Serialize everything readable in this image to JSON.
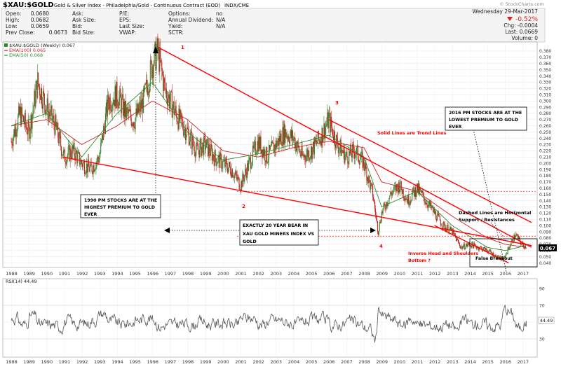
{
  "header": {
    "symbol": "$XAU:$GOLD",
    "description": "Gold & Silver Index - Philadelphia/Gold - Continuous Contract (EOD)",
    "exchange": "INDX/CME",
    "watermark": "© StockCharts.com",
    "date": "Wednesday 29-Mar-2017",
    "change_pct": "-0.52%",
    "change": "Chg: -0.0004",
    "last": "Last: 0.0669",
    "volume": "Volume: 0",
    "stats": [
      [
        {
          "k": "Open:",
          "v": "0.0680"
        },
        {
          "k": "Ask:",
          "v": ""
        },
        {
          "k": "P/E:",
          "v": ""
        },
        {
          "k": "Options:",
          "v": "no"
        }
      ],
      [
        {
          "k": "High:",
          "v": "0.0682"
        },
        {
          "k": "Ask Size:",
          "v": ""
        },
        {
          "k": "EPS:",
          "v": ""
        },
        {
          "k": "Annual Dividend:",
          "v": "N/A"
        }
      ],
      [
        {
          "k": "Low:",
          "v": "0.0659"
        },
        {
          "k": "Bid:",
          "v": ""
        },
        {
          "k": "Last Size:",
          "v": ""
        },
        {
          "k": "Yield:",
          "v": "N/A"
        }
      ],
      [
        {
          "k": "Prev Close:",
          "v": "0.0673"
        },
        {
          "k": "Bid Size:",
          "v": ""
        },
        {
          "k": "VWAP:",
          "v": ""
        },
        {
          "k": "SCTR:",
          "v": ""
        }
      ]
    ]
  },
  "legend": {
    "price": "$XAU:$GOLD (Weekly) 0.067",
    "ema100": "EMA(100) 0.065",
    "ema50": "EMA(50) 0.068"
  },
  "rsi_label": "RSI(14) 44.49",
  "rsi_last": "44.49",
  "current_price": "0.067",
  "colors": {
    "up": "#2e8b2e",
    "down": "#cc2222",
    "ema100": "#cc2222",
    "ema50": "#2e8b2e",
    "trend": "#ff0000",
    "rsi": "#555555"
  },
  "annotations": {
    "n1": "1",
    "n2": "2",
    "n3": "3",
    "n4": "4",
    "box1990": [
      "1990 PM STOCKS ARE AT THE",
      "HIGHEST PREMIUM TO GOLD",
      "EVER"
    ],
    "box2016": [
      "2016 PM STOCKS ARE AT THE",
      "LOWEST PREMIUM TO GOLD",
      "EVER"
    ],
    "bear": [
      "EXACTLY 20 YEAR BEAR IN",
      "XAU GOLD MINERS INDEX VS",
      "GOLD"
    ],
    "solid": "Solid Lines are Trend Lines",
    "dashed": [
      "Dashed  Lines are Horizontal",
      "Support / Resistances"
    ],
    "ihs": [
      "Inverse Head and Shoulders",
      "Bottom ?"
    ],
    "false_breakout": "False Breakout"
  },
  "chart_data": {
    "type": "candlestick",
    "title": "$XAU:$GOLD (Weekly)",
    "x_years": [
      "1988",
      "1989",
      "1990",
      "1991",
      "1992",
      "1993",
      "1994",
      "1995",
      "1996",
      "1997",
      "1998",
      "1999",
      "2000",
      "2001",
      "2002",
      "2003",
      "2004",
      "2005",
      "2006",
      "2007",
      "2008",
      "2009",
      "2010",
      "2011",
      "2012",
      "2013",
      "2014",
      "2015",
      "2016",
      "2017"
    ],
    "ylim": [
      0.035,
      0.39
    ],
    "y_ticks": [
      "0.040",
      "0.050",
      "0.060",
      "0.070",
      "0.080",
      "0.090",
      "0.100",
      "0.110",
      "0.120",
      "0.130",
      "0.140",
      "0.150",
      "0.160",
      "0.170",
      "0.180",
      "0.190",
      "0.200",
      "0.210",
      "0.220",
      "0.230",
      "0.240",
      "0.250",
      "0.260",
      "0.270",
      "0.280",
      "0.290",
      "0.300",
      "0.310",
      "0.320",
      "0.330",
      "0.340",
      "0.350",
      "0.360",
      "0.370",
      "0.380"
    ],
    "price_path": [
      [
        1988.0,
        0.235
      ],
      [
        1988.5,
        0.28
      ],
      [
        1989.0,
        0.25
      ],
      [
        1989.5,
        0.33
      ],
      [
        1990.0,
        0.29
      ],
      [
        1990.5,
        0.26
      ],
      [
        1991.0,
        0.21
      ],
      [
        1991.5,
        0.22
      ],
      [
        1992.0,
        0.2
      ],
      [
        1992.5,
        0.19
      ],
      [
        1993.0,
        0.21
      ],
      [
        1993.5,
        0.3
      ],
      [
        1994.0,
        0.31
      ],
      [
        1994.5,
        0.28
      ],
      [
        1995.0,
        0.27
      ],
      [
        1995.5,
        0.3
      ],
      [
        1996.0,
        0.36
      ],
      [
        1996.3,
        0.38
      ],
      [
        1996.7,
        0.32
      ],
      [
        1997.0,
        0.3
      ],
      [
        1997.5,
        0.27
      ],
      [
        1998.0,
        0.25
      ],
      [
        1998.5,
        0.22
      ],
      [
        1999.0,
        0.23
      ],
      [
        1999.5,
        0.21
      ],
      [
        2000.0,
        0.2
      ],
      [
        2000.5,
        0.19
      ],
      [
        2001.0,
        0.165
      ],
      [
        2001.5,
        0.2
      ],
      [
        2002.0,
        0.235
      ],
      [
        2002.5,
        0.21
      ],
      [
        2003.0,
        0.23
      ],
      [
        2003.5,
        0.25
      ],
      [
        2004.0,
        0.24
      ],
      [
        2004.5,
        0.21
      ],
      [
        2005.0,
        0.22
      ],
      [
        2005.5,
        0.24
      ],
      [
        2006.0,
        0.27
      ],
      [
        2006.5,
        0.23
      ],
      [
        2007.0,
        0.21
      ],
      [
        2007.5,
        0.22
      ],
      [
        2008.0,
        0.2
      ],
      [
        2008.5,
        0.15
      ],
      [
        2008.8,
        0.09
      ],
      [
        2009.0,
        0.12
      ],
      [
        2009.5,
        0.15
      ],
      [
        2010.0,
        0.165
      ],
      [
        2010.5,
        0.14
      ],
      [
        2011.0,
        0.16
      ],
      [
        2011.5,
        0.14
      ],
      [
        2012.0,
        0.12
      ],
      [
        2012.5,
        0.1
      ],
      [
        2013.0,
        0.09
      ],
      [
        2013.5,
        0.065
      ],
      [
        2014.0,
        0.07
      ],
      [
        2014.5,
        0.065
      ],
      [
        2015.0,
        0.06
      ],
      [
        2015.5,
        0.05
      ],
      [
        2015.9,
        0.045
      ],
      [
        2016.3,
        0.07
      ],
      [
        2016.6,
        0.085
      ],
      [
        2017.0,
        0.068
      ],
      [
        2017.2,
        0.067
      ]
    ],
    "ema100_path": [
      [
        1988.0,
        0.26
      ],
      [
        1990.0,
        0.27
      ],
      [
        1992.0,
        0.23
      ],
      [
        1994.0,
        0.26
      ],
      [
        1996.0,
        0.3
      ],
      [
        1998.0,
        0.27
      ],
      [
        2000.0,
        0.22
      ],
      [
        2002.0,
        0.21
      ],
      [
        2004.0,
        0.225
      ],
      [
        2006.0,
        0.235
      ],
      [
        2008.0,
        0.225
      ],
      [
        2009.0,
        0.17
      ],
      [
        2011.0,
        0.155
      ],
      [
        2013.0,
        0.115
      ],
      [
        2015.0,
        0.08
      ],
      [
        2016.0,
        0.07
      ],
      [
        2017.2,
        0.065
      ]
    ],
    "ema50_path": [
      [
        1988.0,
        0.26
      ],
      [
        1990.0,
        0.28
      ],
      [
        1992.0,
        0.21
      ],
      [
        1994.0,
        0.28
      ],
      [
        1996.0,
        0.33
      ],
      [
        1998.0,
        0.25
      ],
      [
        2000.0,
        0.205
      ],
      [
        2002.0,
        0.215
      ],
      [
        2004.0,
        0.23
      ],
      [
        2006.0,
        0.245
      ],
      [
        2008.0,
        0.21
      ],
      [
        2009.0,
        0.13
      ],
      [
        2011.0,
        0.155
      ],
      [
        2013.0,
        0.1
      ],
      [
        2015.0,
        0.065
      ],
      [
        2016.0,
        0.06
      ],
      [
        2017.2,
        0.068
      ]
    ],
    "trend_lines": [
      {
        "from": [
          1996.4,
          0.385
        ],
        "to": [
          2017.5,
          0.065
        ]
      },
      {
        "from": [
          1990.9,
          0.21
        ],
        "to": [
          2017.5,
          0.068
        ]
      },
      {
        "from": [
          2006.0,
          0.27
        ],
        "to": [
          2017.5,
          0.105
        ]
      },
      {
        "from": [
          2012.0,
          0.1
        ],
        "to": [
          2016.2,
          0.04
        ]
      }
    ],
    "dashed_levels": [
      0.155,
      0.083
    ],
    "rsi": {
      "label": "RSI(14)",
      "last": 44.49,
      "ylim": [
        10,
        100
      ],
      "ticks": [
        30,
        50,
        70,
        90
      ]
    }
  }
}
